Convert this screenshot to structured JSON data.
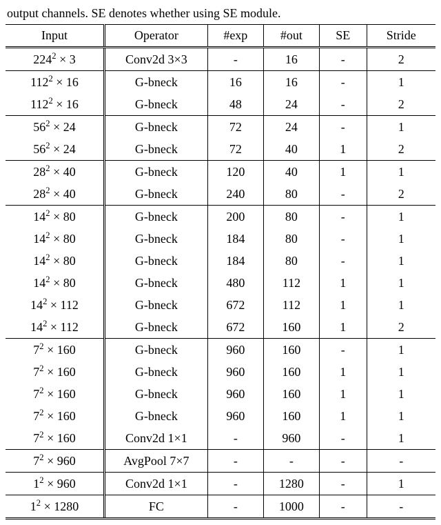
{
  "caption": "output channels. SE denotes whether using SE module.",
  "table": {
    "font_size": 18,
    "columns": [
      "Input",
      "Operator",
      "#exp",
      "#out",
      "SE",
      "Stride"
    ],
    "col_seps": [
      "double",
      "single",
      "single",
      "single",
      "single",
      "none"
    ],
    "border_color": "#000000",
    "groups": [
      [
        {
          "input": "224^2 × 3",
          "op": "Conv2d 3×3",
          "exp": "-",
          "out": "16",
          "se": "-",
          "stride": "2"
        }
      ],
      [
        {
          "input": "112^2 × 16",
          "op": "G-bneck",
          "exp": "16",
          "out": "16",
          "se": "-",
          "stride": "1"
        },
        {
          "input": "112^2 × 16",
          "op": "G-bneck",
          "exp": "48",
          "out": "24",
          "se": "-",
          "stride": "2"
        }
      ],
      [
        {
          "input": "56^2 × 24",
          "op": "G-bneck",
          "exp": "72",
          "out": "24",
          "se": "-",
          "stride": "1"
        },
        {
          "input": "56^2 × 24",
          "op": "G-bneck",
          "exp": "72",
          "out": "40",
          "se": "1",
          "stride": "2"
        }
      ],
      [
        {
          "input": "28^2 × 40",
          "op": "G-bneck",
          "exp": "120",
          "out": "40",
          "se": "1",
          "stride": "1"
        },
        {
          "input": "28^2 × 40",
          "op": "G-bneck",
          "exp": "240",
          "out": "80",
          "se": "-",
          "stride": "2"
        }
      ],
      [
        {
          "input": "14^2 × 80",
          "op": "G-bneck",
          "exp": "200",
          "out": "80",
          "se": "-",
          "stride": "1"
        },
        {
          "input": "14^2 × 80",
          "op": "G-bneck",
          "exp": "184",
          "out": "80",
          "se": "-",
          "stride": "1"
        },
        {
          "input": "14^2 × 80",
          "op": "G-bneck",
          "exp": "184",
          "out": "80",
          "se": "-",
          "stride": "1"
        },
        {
          "input": "14^2 × 80",
          "op": "G-bneck",
          "exp": "480",
          "out": "112",
          "se": "1",
          "stride": "1"
        },
        {
          "input": "14^2 × 112",
          "op": "G-bneck",
          "exp": "672",
          "out": "112",
          "se": "1",
          "stride": "1"
        },
        {
          "input": "14^2 × 112",
          "op": "G-bneck",
          "exp": "672",
          "out": "160",
          "se": "1",
          "stride": "2"
        }
      ],
      [
        {
          "input": "7^2 × 160",
          "op": "G-bneck",
          "exp": "960",
          "out": "160",
          "se": "-",
          "stride": "1"
        },
        {
          "input": "7^2 × 160",
          "op": "G-bneck",
          "exp": "960",
          "out": "160",
          "se": "1",
          "stride": "1"
        },
        {
          "input": "7^2 × 160",
          "op": "G-bneck",
          "exp": "960",
          "out": "160",
          "se": "1",
          "stride": "1"
        },
        {
          "input": "7^2 × 160",
          "op": "G-bneck",
          "exp": "960",
          "out": "160",
          "se": "1",
          "stride": "1"
        },
        {
          "input": "7^2 × 160",
          "op": "Conv2d 1×1",
          "exp": "-",
          "out": "960",
          "se": "-",
          "stride": "1"
        }
      ],
      [
        {
          "input": "7^2 × 960",
          "op": "AvgPool 7×7",
          "exp": "-",
          "out": "-",
          "se": "-",
          "stride": "-"
        }
      ],
      [
        {
          "input": "1^2 × 960",
          "op": "Conv2d 1×1",
          "exp": "-",
          "out": "1280",
          "se": "-",
          "stride": "1"
        }
      ],
      [
        {
          "input": "1^2 × 1280",
          "op": "FC",
          "exp": "-",
          "out": "1000",
          "se": "-",
          "stride": "-"
        }
      ]
    ]
  }
}
